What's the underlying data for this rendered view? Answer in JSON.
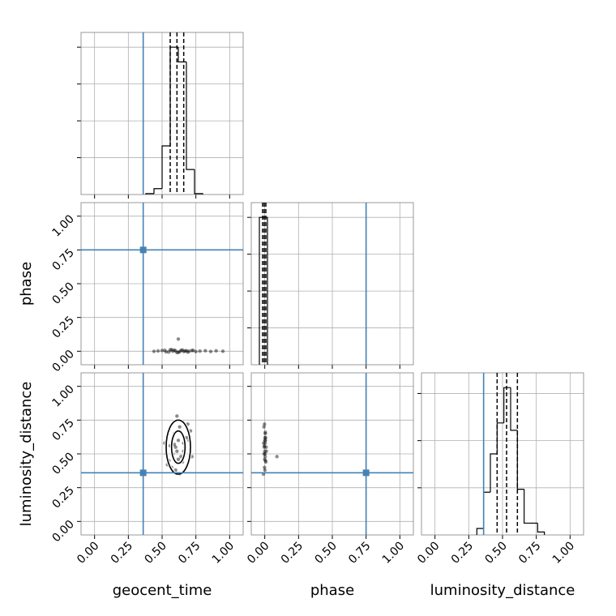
{
  "chart_data": [
    {
      "type": "histogram",
      "bins": [
        0.38,
        0.44,
        0.5,
        0.56,
        0.62,
        0.68,
        0.74,
        0.8
      ],
      "values": [
        0.006,
        0.04,
        0.33,
        1.0,
        0.9,
        0.17,
        0.006
      ],
      "xlim": [
        -0.1,
        1.1
      ],
      "xticks": [
        0,
        0.25,
        0.5,
        0.75,
        1
      ],
      "ylim": [
        0,
        1.1
      ],
      "yticks": [
        0.25,
        0.5,
        0.75,
        1
      ],
      "truth": 0.36,
      "quantiles": [
        0.56,
        0.61,
        0.66
      ],
      "grid": true,
      "color": "#000000",
      "truth_color": "#4682b4"
    },
    {
      "type": "scatter",
      "ylabel": "phase",
      "x": [
        0.5,
        0.53,
        0.56,
        0.58,
        0.6,
        0.62,
        0.64,
        0.66,
        0.68,
        0.7,
        0.55,
        0.59,
        0.63,
        0.67,
        0.72,
        0.75,
        0.78,
        0.82,
        0.86,
        0.9,
        0.95,
        0.47,
        0.44,
        0.57,
        0.61,
        0.65,
        0.52,
        0.69,
        0.73,
        0.62
      ],
      "y": [
        0.005,
        -0.005,
        0.01,
        0,
        0.003,
        -0.008,
        0.006,
        -0.002,
        0.004,
        0,
        -0.006,
        0.008,
        -0.004,
        0.002,
        0.005,
        -0.003,
        0.001,
        0.004,
        -0.002,
        0.003,
        0,
        0.002,
        -0.001,
        0.012,
        -0.01,
        0.009,
        0.007,
        -0.007,
        0.006,
        0.09
      ],
      "xlim": [
        -0.1,
        1.1
      ],
      "xticks": [
        0,
        0.25,
        0.5,
        0.75,
        1
      ],
      "ylim": [
        -0.1,
        1.1
      ],
      "yticks": [
        {
          "value": 0,
          "label": "0.00"
        },
        {
          "value": 0.25,
          "label": "0.25"
        },
        {
          "value": 0.5,
          "label": "0.50"
        },
        {
          "value": 0.75,
          "label": "0.75"
        },
        {
          "value": 1,
          "label": "1.00"
        }
      ],
      "truth": [
        0.36,
        0.75
      ],
      "grid": true,
      "color": "#000000",
      "truth_color": "#4682b4"
    },
    {
      "type": "histogram",
      "bins": [
        -0.04,
        0.02
      ],
      "values": [
        1.0
      ],
      "xlim": [
        -0.1,
        1.1
      ],
      "xticks": [
        0,
        0.25,
        0.5,
        0.75,
        1
      ],
      "ylim": [
        0,
        1.1
      ],
      "yticks": [
        0.25,
        0.5,
        0.75,
        1
      ],
      "truth": 0.75,
      "quantiles": [
        -0.016,
        -0.004,
        0.008
      ],
      "grid": true,
      "color": "#000000",
      "truth_color": "#4682b4"
    },
    {
      "type": "scatter",
      "ylabel": "luminosity_distance",
      "xlabel": "geocent_time",
      "x": [
        0.55,
        0.58,
        0.6,
        0.62,
        0.64,
        0.66,
        0.68,
        0.57,
        0.59,
        0.61,
        0.63,
        0.65,
        0.67,
        0.53,
        0.7,
        0.56,
        0.6,
        0.64,
        0.69,
        0.52,
        0.72,
        0.58,
        0.62,
        0.66,
        0.61,
        0.54,
        0.71,
        0.63,
        0.59,
        0.65
      ],
      "y": [
        0.45,
        0.5,
        0.55,
        0.6,
        0.48,
        0.58,
        0.62,
        0.4,
        0.65,
        0.52,
        0.7,
        0.44,
        0.55,
        0.5,
        0.6,
        0.56,
        0.38,
        0.66,
        0.72,
        0.58,
        0.48,
        0.62,
        0.46,
        0.52,
        0.78,
        0.42,
        0.67,
        0.35,
        0.57,
        0.74
      ],
      "contours": [
        {
          "center": [
            0.62,
            0.55
          ],
          "radius": [
            0.09,
            0.2
          ]
        },
        {
          "center": [
            0.62,
            0.55
          ],
          "radius": [
            0.05,
            0.12
          ]
        }
      ],
      "xlim": [
        -0.1,
        1.1
      ],
      "xticks": [
        {
          "value": 0,
          "label": "0.00"
        },
        {
          "value": 0.25,
          "label": "0.25"
        },
        {
          "value": 0.5,
          "label": "0.50"
        },
        {
          "value": 0.75,
          "label": "0.75"
        },
        {
          "value": 1,
          "label": "1.00"
        }
      ],
      "ylim": [
        -0.1,
        1.1
      ],
      "yticks": [
        {
          "value": 0,
          "label": "0.00"
        },
        {
          "value": 0.25,
          "label": "0.25"
        },
        {
          "value": 0.5,
          "label": "0.50"
        },
        {
          "value": 0.75,
          "label": "0.75"
        },
        {
          "value": 1,
          "label": "1.00"
        }
      ],
      "truth": [
        0.36,
        0.36
      ],
      "grid": true,
      "color": "#000000",
      "truth_color": "#4682b4"
    },
    {
      "type": "scatter",
      "xlabel": "phase",
      "x": [
        0.005,
        -0.005,
        0.01,
        0,
        0.003,
        -0.008,
        0.006,
        -0.002,
        0.004,
        0,
        -0.006,
        0.008,
        -0.004,
        0.002,
        0.005,
        -0.003,
        0.001,
        0.004,
        -0.002,
        0.003,
        0.09,
        0.002,
        -0.001,
        0.012,
        -0.01
      ],
      "y": [
        0.45,
        0.5,
        0.55,
        0.6,
        0.48,
        0.58,
        0.62,
        0.4,
        0.65,
        0.52,
        0.7,
        0.44,
        0.55,
        0.5,
        0.6,
        0.56,
        0.38,
        0.66,
        0.72,
        0.58,
        0.48,
        0.62,
        0.46,
        0.52,
        0.35
      ],
      "xlim": [
        -0.1,
        1.1
      ],
      "xticks": [
        {
          "value": 0,
          "label": "0.00"
        },
        {
          "value": 0.25,
          "label": "0.25"
        },
        {
          "value": 0.5,
          "label": "0.50"
        },
        {
          "value": 0.75,
          "label": "0.75"
        },
        {
          "value": 1,
          "label": "1.00"
        }
      ],
      "ylim": [
        -0.1,
        1.1
      ],
      "yticks": [
        0,
        0.25,
        0.5,
        0.75,
        1
      ],
      "truth": [
        0.75,
        0.36
      ],
      "grid": true,
      "color": "#000000",
      "truth_color": "#4682b4"
    },
    {
      "type": "histogram",
      "xlabel": "luminosity_distance",
      "bins": [
        0.31,
        0.36,
        0.41,
        0.46,
        0.51,
        0.56,
        0.61,
        0.66,
        0.71,
        0.76,
        0.81
      ],
      "values": [
        0.044,
        0.29,
        0.55,
        0.76,
        1.0,
        0.71,
        0.31,
        0.08,
        0.08,
        0.02
      ],
      "xlim": [
        -0.1,
        1.1
      ],
      "xticks": [
        {
          "value": 0,
          "label": "0.00"
        },
        {
          "value": 0.25,
          "label": "0.25"
        },
        {
          "value": 0.5,
          "label": "0.50"
        },
        {
          "value": 0.75,
          "label": "0.75"
        },
        {
          "value": 1,
          "label": "1.00"
        }
      ],
      "ylim": [
        0,
        1.1
      ],
      "yticks": [
        0.32,
        0.64,
        0.96
      ],
      "truth": 0.36,
      "quantiles": [
        0.46,
        0.53,
        0.61
      ],
      "grid": true,
      "color": "#000000",
      "truth_color": "#4682b4"
    }
  ]
}
